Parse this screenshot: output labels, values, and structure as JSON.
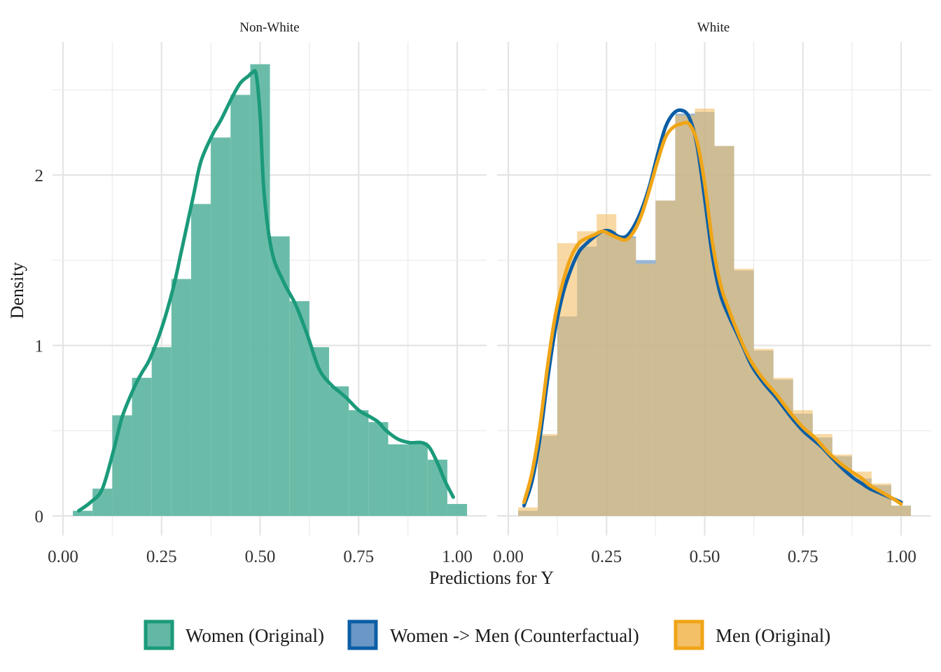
{
  "chart_data": {
    "type": "histogram_density_facets",
    "xlabel": "Predictions for Y",
    "ylabel": "Density",
    "xlim": [
      0.0,
      1.03
    ],
    "ylim": [
      0,
      2.65
    ],
    "x_ticks": [
      "0.00",
      "0.25",
      "0.50",
      "0.75",
      "1.00"
    ],
    "y_ticks": [
      "0",
      "1",
      "2"
    ],
    "grid": true,
    "legend_position": "bottom",
    "legend": [
      {
        "label": "Women (Original)",
        "color": "#1b9a7a",
        "fill": "#62b8a4"
      },
      {
        "label": "Women -> Men (Counterfactual)",
        "color": "#0b5ea5",
        "fill": "#6a97c6"
      },
      {
        "label": "Men (Original)",
        "color": "#f0a516",
        "fill": "#f3c068"
      }
    ],
    "bin_edges": [
      0.025,
      0.075,
      0.125,
      0.175,
      0.225,
      0.275,
      0.325,
      0.375,
      0.425,
      0.475,
      0.525,
      0.575,
      0.625,
      0.675,
      0.725,
      0.775,
      0.825,
      0.875,
      0.925,
      0.975,
      1.025
    ],
    "panels": [
      {
        "title": "Non-White",
        "series": [
          {
            "name": "Women (Original)",
            "histogram": [
              0.03,
              0.16,
              0.59,
              0.81,
              0.99,
              1.39,
              1.83,
              2.22,
              2.47,
              2.65,
              1.64,
              1.26,
              0.99,
              0.76,
              0.62,
              0.55,
              0.42,
              0.43,
              0.33,
              0.07
            ],
            "density": {
              "x": [
                0.04,
                0.07,
                0.1,
                0.13,
                0.15,
                0.18,
                0.2,
                0.22,
                0.25,
                0.28,
                0.3,
                0.33,
                0.35,
                0.38,
                0.4,
                0.43,
                0.45,
                0.47,
                0.48,
                0.49,
                0.5,
                0.51,
                0.53,
                0.56,
                0.59,
                0.62,
                0.65,
                0.68,
                0.7,
                0.72,
                0.75,
                0.78,
                0.8,
                0.82,
                0.85,
                0.88,
                0.91,
                0.93,
                0.95,
                0.97,
                0.99
              ],
              "y": [
                0.03,
                0.08,
                0.16,
                0.4,
                0.58,
                0.75,
                0.84,
                0.92,
                1.1,
                1.34,
                1.55,
                1.87,
                2.08,
                2.24,
                2.32,
                2.46,
                2.54,
                2.58,
                2.6,
                2.59,
                2.35,
                1.9,
                1.55,
                1.37,
                1.24,
                1.06,
                0.86,
                0.77,
                0.73,
                0.69,
                0.62,
                0.58,
                0.55,
                0.5,
                0.45,
                0.43,
                0.43,
                0.4,
                0.31,
                0.2,
                0.11
              ]
            }
          }
        ]
      },
      {
        "title": "White",
        "series": [
          {
            "name": "Women -> Men (Counterfactual)",
            "histogram": [
              0.03,
              0.47,
              1.17,
              1.58,
              1.67,
              1.64,
              1.5,
              1.85,
              2.36,
              2.37,
              2.17,
              1.44,
              0.97,
              0.8,
              0.6,
              0.46,
              0.35,
              0.22,
              0.18,
              0.06
            ],
            "density": {
              "x": [
                0.04,
                0.06,
                0.08,
                0.1,
                0.12,
                0.14,
                0.16,
                0.18,
                0.2,
                0.22,
                0.24,
                0.26,
                0.28,
                0.3,
                0.32,
                0.34,
                0.36,
                0.38,
                0.4,
                0.42,
                0.44,
                0.46,
                0.48,
                0.5,
                0.52,
                0.54,
                0.56,
                0.58,
                0.6,
                0.62,
                0.65,
                0.68,
                0.7,
                0.72,
                0.75,
                0.78,
                0.8,
                0.82,
                0.85,
                0.88,
                0.9,
                0.92,
                0.95,
                0.98,
                1.0
              ],
              "y": [
                0.06,
                0.2,
                0.45,
                0.8,
                1.1,
                1.31,
                1.45,
                1.55,
                1.6,
                1.64,
                1.67,
                1.67,
                1.64,
                1.64,
                1.7,
                1.8,
                1.94,
                2.12,
                2.28,
                2.36,
                2.38,
                2.34,
                2.18,
                1.86,
                1.52,
                1.3,
                1.18,
                1.08,
                0.98,
                0.88,
                0.78,
                0.7,
                0.64,
                0.58,
                0.5,
                0.44,
                0.4,
                0.35,
                0.28,
                0.22,
                0.19,
                0.16,
                0.13,
                0.1,
                0.08
              ]
            }
          },
          {
            "name": "Men (Original)",
            "histogram": [
              0.05,
              0.48,
              1.6,
              1.67,
              1.77,
              1.63,
              1.48,
              1.85,
              2.35,
              2.39,
              2.17,
              1.45,
              0.98,
              0.81,
              0.62,
              0.48,
              0.36,
              0.26,
              0.19,
              0.06
            ],
            "density": {
              "x": [
                0.04,
                0.06,
                0.08,
                0.1,
                0.12,
                0.14,
                0.16,
                0.18,
                0.2,
                0.22,
                0.24,
                0.26,
                0.28,
                0.3,
                0.32,
                0.34,
                0.36,
                0.38,
                0.4,
                0.42,
                0.44,
                0.46,
                0.48,
                0.5,
                0.52,
                0.54,
                0.56,
                0.58,
                0.6,
                0.62,
                0.65,
                0.68,
                0.7,
                0.72,
                0.75,
                0.78,
                0.8,
                0.82,
                0.85,
                0.88,
                0.9,
                0.92,
                0.95,
                0.98,
                1.0
              ],
              "y": [
                0.08,
                0.25,
                0.52,
                0.88,
                1.18,
                1.38,
                1.52,
                1.6,
                1.63,
                1.65,
                1.67,
                1.65,
                1.63,
                1.62,
                1.67,
                1.77,
                1.92,
                2.08,
                2.22,
                2.28,
                2.3,
                2.3,
                2.2,
                1.95,
                1.6,
                1.36,
                1.22,
                1.1,
                0.99,
                0.9,
                0.8,
                0.72,
                0.66,
                0.6,
                0.52,
                0.46,
                0.41,
                0.36,
                0.3,
                0.25,
                0.22,
                0.18,
                0.14,
                0.1,
                0.07
              ]
            }
          }
        ]
      }
    ]
  }
}
